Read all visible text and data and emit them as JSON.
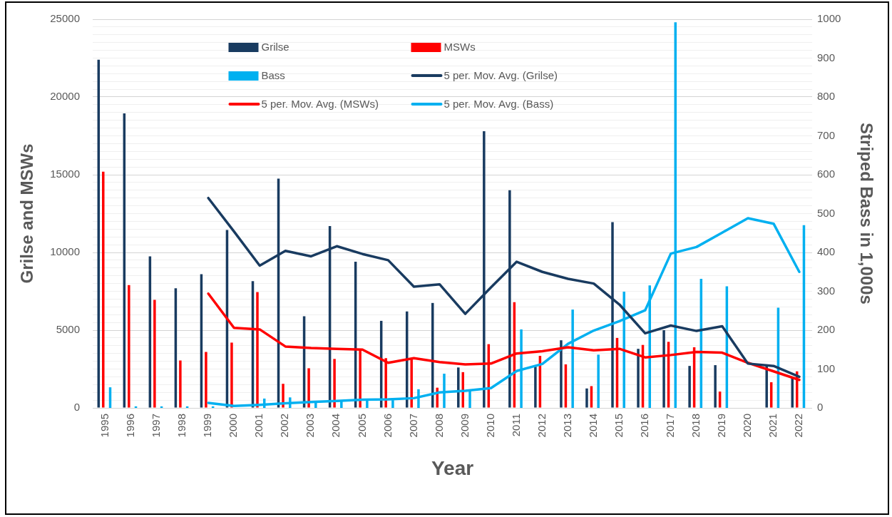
{
  "chart_data": {
    "type": "bar",
    "xlabel": "Year",
    "ylabel": "Grilse and MSWs",
    "y2label": "Striped Bass in 1,000s",
    "categories": [
      "1995",
      "1996",
      "1997",
      "1998",
      "1999",
      "2000",
      "2001",
      "2002",
      "2003",
      "2004",
      "2005",
      "2006",
      "2007",
      "2008",
      "2009",
      "2010",
      "2011",
      "2012",
      "2013",
      "2014",
      "2015",
      "2016",
      "2017",
      "2018",
      "2019",
      "2020",
      "2021",
      "2022"
    ],
    "series": [
      {
        "name": "Grilse",
        "color": "#193b60",
        "values": [
          22400,
          18950,
          9750,
          7700,
          8600,
          11450,
          8150,
          14750,
          5900,
          11700,
          9400,
          5600,
          6200,
          6750,
          2600,
          17800,
          14000,
          2650,
          4350,
          1250,
          11950,
          3800,
          5000,
          2700,
          2750,
          null,
          2800,
          1950
        ]
      },
      {
        "name": "MSWs",
        "color": "#ff0000",
        "values": [
          15200,
          7900,
          6950,
          3050,
          3600,
          4200,
          7450,
          1550,
          2550,
          3150,
          3800,
          3200,
          3200,
          1300,
          2300,
          4100,
          6800,
          3350,
          2800,
          1400,
          4500,
          4050,
          4250,
          3900,
          1050,
          null,
          1650,
          2350
        ]
      },
      {
        "name": "Bass",
        "axis": "y2",
        "color": "#00b0f0",
        "values": [
          53,
          4,
          4,
          4,
          4,
          null,
          24,
          27,
          15,
          18,
          22,
          20,
          48,
          88,
          45,
          null,
          202,
          null,
          253,
          137,
          299,
          315,
          992,
          332,
          313,
          null,
          258,
          470
        ]
      },
      {
        "name": "5 per. Mov. Avg. (Grilse)",
        "type": "line",
        "color": "#193b60",
        "values": [
          null,
          null,
          null,
          null,
          13500,
          11350,
          9150,
          10100,
          9750,
          10400,
          9900,
          9500,
          7800,
          7950,
          6050,
          7750,
          9400,
          8750,
          8300,
          8000,
          6650,
          4800,
          5300,
          4950,
          5250,
          2850,
          2700,
          2000
        ]
      },
      {
        "name": "5 per. Mov. Avg. (MSWs)",
        "type": "line",
        "color": "#ff0000",
        "values": [
          null,
          null,
          null,
          null,
          7350,
          5150,
          5050,
          3950,
          3850,
          3800,
          3750,
          2900,
          3200,
          2950,
          2800,
          2850,
          3500,
          3650,
          3900,
          3700,
          3800,
          3250,
          3400,
          3600,
          3550,
          2900,
          2350,
          1800
        ]
      },
      {
        "name": "5 per. Mov. Avg. (Bass)",
        "type": "line",
        "axis": "y2",
        "color": "#00b0f0",
        "values": [
          null,
          null,
          null,
          null,
          13,
          5,
          8,
          12,
          15,
          18,
          21,
          22,
          25,
          40,
          44,
          51,
          95,
          113,
          165,
          199,
          223,
          251,
          397,
          414,
          451,
          488,
          474,
          350
        ]
      }
    ],
    "ylim": [
      0,
      25000
    ],
    "yticks": [
      0,
      {
        "value": 500,
        "label": null
      },
      {
        "value": 1000,
        "label": null
      },
      {
        "value": 1500,
        "label": null
      },
      {
        "value": 2000,
        "label": null
      },
      {
        "value": 2500,
        "label": null
      },
      {
        "value": 3000,
        "label": null
      },
      {
        "value": 3500,
        "label": null
      },
      {
        "value": 4000,
        "label": null
      },
      {
        "value": 4500,
        "label": null
      },
      5000,
      {
        "value": 5500,
        "label": null
      },
      {
        "value": 6000,
        "label": null
      },
      {
        "value": 6500,
        "label": null
      },
      {
        "value": 7000,
        "label": null
      },
      {
        "value": 7500,
        "label": null
      },
      {
        "value": 8000,
        "label": null
      },
      {
        "value": 8500,
        "label": null
      },
      {
        "value": 9000,
        "label": null
      },
      {
        "value": 9500,
        "label": null
      },
      10000,
      {
        "value": 10500,
        "label": null
      },
      {
        "value": 11000,
        "label": null
      },
      {
        "value": 11500,
        "label": null
      },
      {
        "value": 12000,
        "label": null
      },
      {
        "value": 12500,
        "label": null
      },
      {
        "value": 13000,
        "label": null
      },
      {
        "value": 13500,
        "label": null
      },
      {
        "value": 14000,
        "label": null
      },
      {
        "value": 14500,
        "label": null
      },
      15000,
      {
        "value": 15500,
        "label": null
      },
      {
        "value": 16000,
        "label": null
      },
      {
        "value": 16500,
        "label": null
      },
      {
        "value": 17000,
        "label": null
      },
      {
        "value": 17500,
        "label": null
      },
      {
        "value": 18000,
        "label": null
      },
      {
        "value": 18500,
        "label": null
      },
      {
        "value": 19000,
        "label": null
      },
      {
        "value": 19500,
        "label": null
      },
      20000,
      {
        "value": 20500,
        "label": null
      },
      {
        "value": 21000,
        "label": null
      },
      {
        "value": 21500,
        "label": null
      },
      {
        "value": 22000,
        "label": null
      },
      {
        "value": 22500,
        "label": null
      },
      {
        "value": 23000,
        "label": null
      },
      {
        "value": 23500,
        "label": null
      },
      {
        "value": 24000,
        "label": null
      },
      {
        "value": 24500,
        "label": null
      },
      25000
    ],
    "y2lim": [
      0,
      1000
    ],
    "y2ticks": [
      0,
      100,
      200,
      300,
      400,
      500,
      600,
      700,
      800,
      900,
      1000
    ],
    "grid": "y",
    "legend": "top"
  }
}
